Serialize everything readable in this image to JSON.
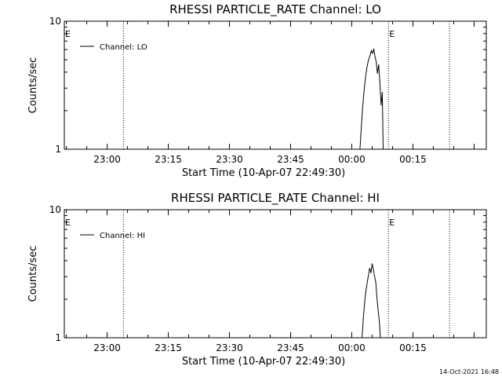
{
  "chart_data": [
    {
      "type": "line",
      "title": "RHESSI  PARTICLE_RATE Channel: LO",
      "xlabel": "Start Time (10-Apr-07 22:49:30)",
      "ylabel": "Counts/sec",
      "x_ticks": [
        "23:00",
        "23:15",
        "23:30",
        "23:45",
        "00:00",
        "00:15"
      ],
      "y_scale": "log",
      "ylim": [
        1,
        10
      ],
      "y_ticks": [
        "1",
        "10"
      ],
      "legend": {
        "placement": "top-left",
        "label": "Channel: LO"
      },
      "markers": [
        {
          "label": "E",
          "time_min": 0
        },
        {
          "label": "E",
          "time_min": 79.5
        }
      ],
      "dotted_lines_min": [
        14.5,
        79.5,
        94.5
      ],
      "series": [
        {
          "name": "Channel: LO",
          "points": [
            [
              72.5,
              1.0
            ],
            [
              73.0,
              1.8
            ],
            [
              73.4,
              2.6
            ],
            [
              73.8,
              3.5
            ],
            [
              74.2,
              4.3
            ],
            [
              74.6,
              5.0
            ],
            [
              75.0,
              5.4
            ],
            [
              75.3,
              5.9
            ],
            [
              75.6,
              5.6
            ],
            [
              75.9,
              6.1
            ],
            [
              76.2,
              5.3
            ],
            [
              76.5,
              4.8
            ],
            [
              76.8,
              3.9
            ],
            [
              77.1,
              4.6
            ],
            [
              77.4,
              3.3
            ],
            [
              77.7,
              2.2
            ],
            [
              78.0,
              2.8
            ],
            [
              78.2,
              1.0
            ]
          ]
        }
      ]
    },
    {
      "type": "line",
      "title": "RHESSI  PARTICLE_RATE Channel: HI",
      "xlabel": "Start Time (10-Apr-07 22:49:30)",
      "ylabel": "Counts/sec",
      "x_ticks": [
        "23:00",
        "23:15",
        "23:30",
        "23:45",
        "00:00",
        "00:15"
      ],
      "y_scale": "log",
      "ylim": [
        1,
        10
      ],
      "y_ticks": [
        "1",
        "10"
      ],
      "legend": {
        "placement": "top-left",
        "label": "Channel: HI"
      },
      "markers": [
        {
          "label": "E",
          "time_min": 0
        },
        {
          "label": "E",
          "time_min": 79.5
        }
      ],
      "dotted_lines_min": [
        14.5,
        79.5,
        94.5
      ],
      "series": [
        {
          "name": "Channel: HI",
          "points": [
            [
              73.0,
              1.0
            ],
            [
              73.4,
              1.5
            ],
            [
              73.8,
              2.1
            ],
            [
              74.2,
              2.6
            ],
            [
              74.6,
              3.1
            ],
            [
              74.9,
              3.5
            ],
            [
              75.2,
              3.2
            ],
            [
              75.5,
              3.8
            ],
            [
              75.8,
              3.4
            ],
            [
              76.1,
              3.0
            ],
            [
              76.4,
              2.7
            ],
            [
              76.7,
              2.0
            ],
            [
              77.0,
              1.6
            ],
            [
              77.3,
              1.3
            ],
            [
              77.5,
              1.0
            ]
          ]
        }
      ]
    }
  ],
  "footer": {
    "timestamp": "14-Oct-2021 16:48"
  }
}
